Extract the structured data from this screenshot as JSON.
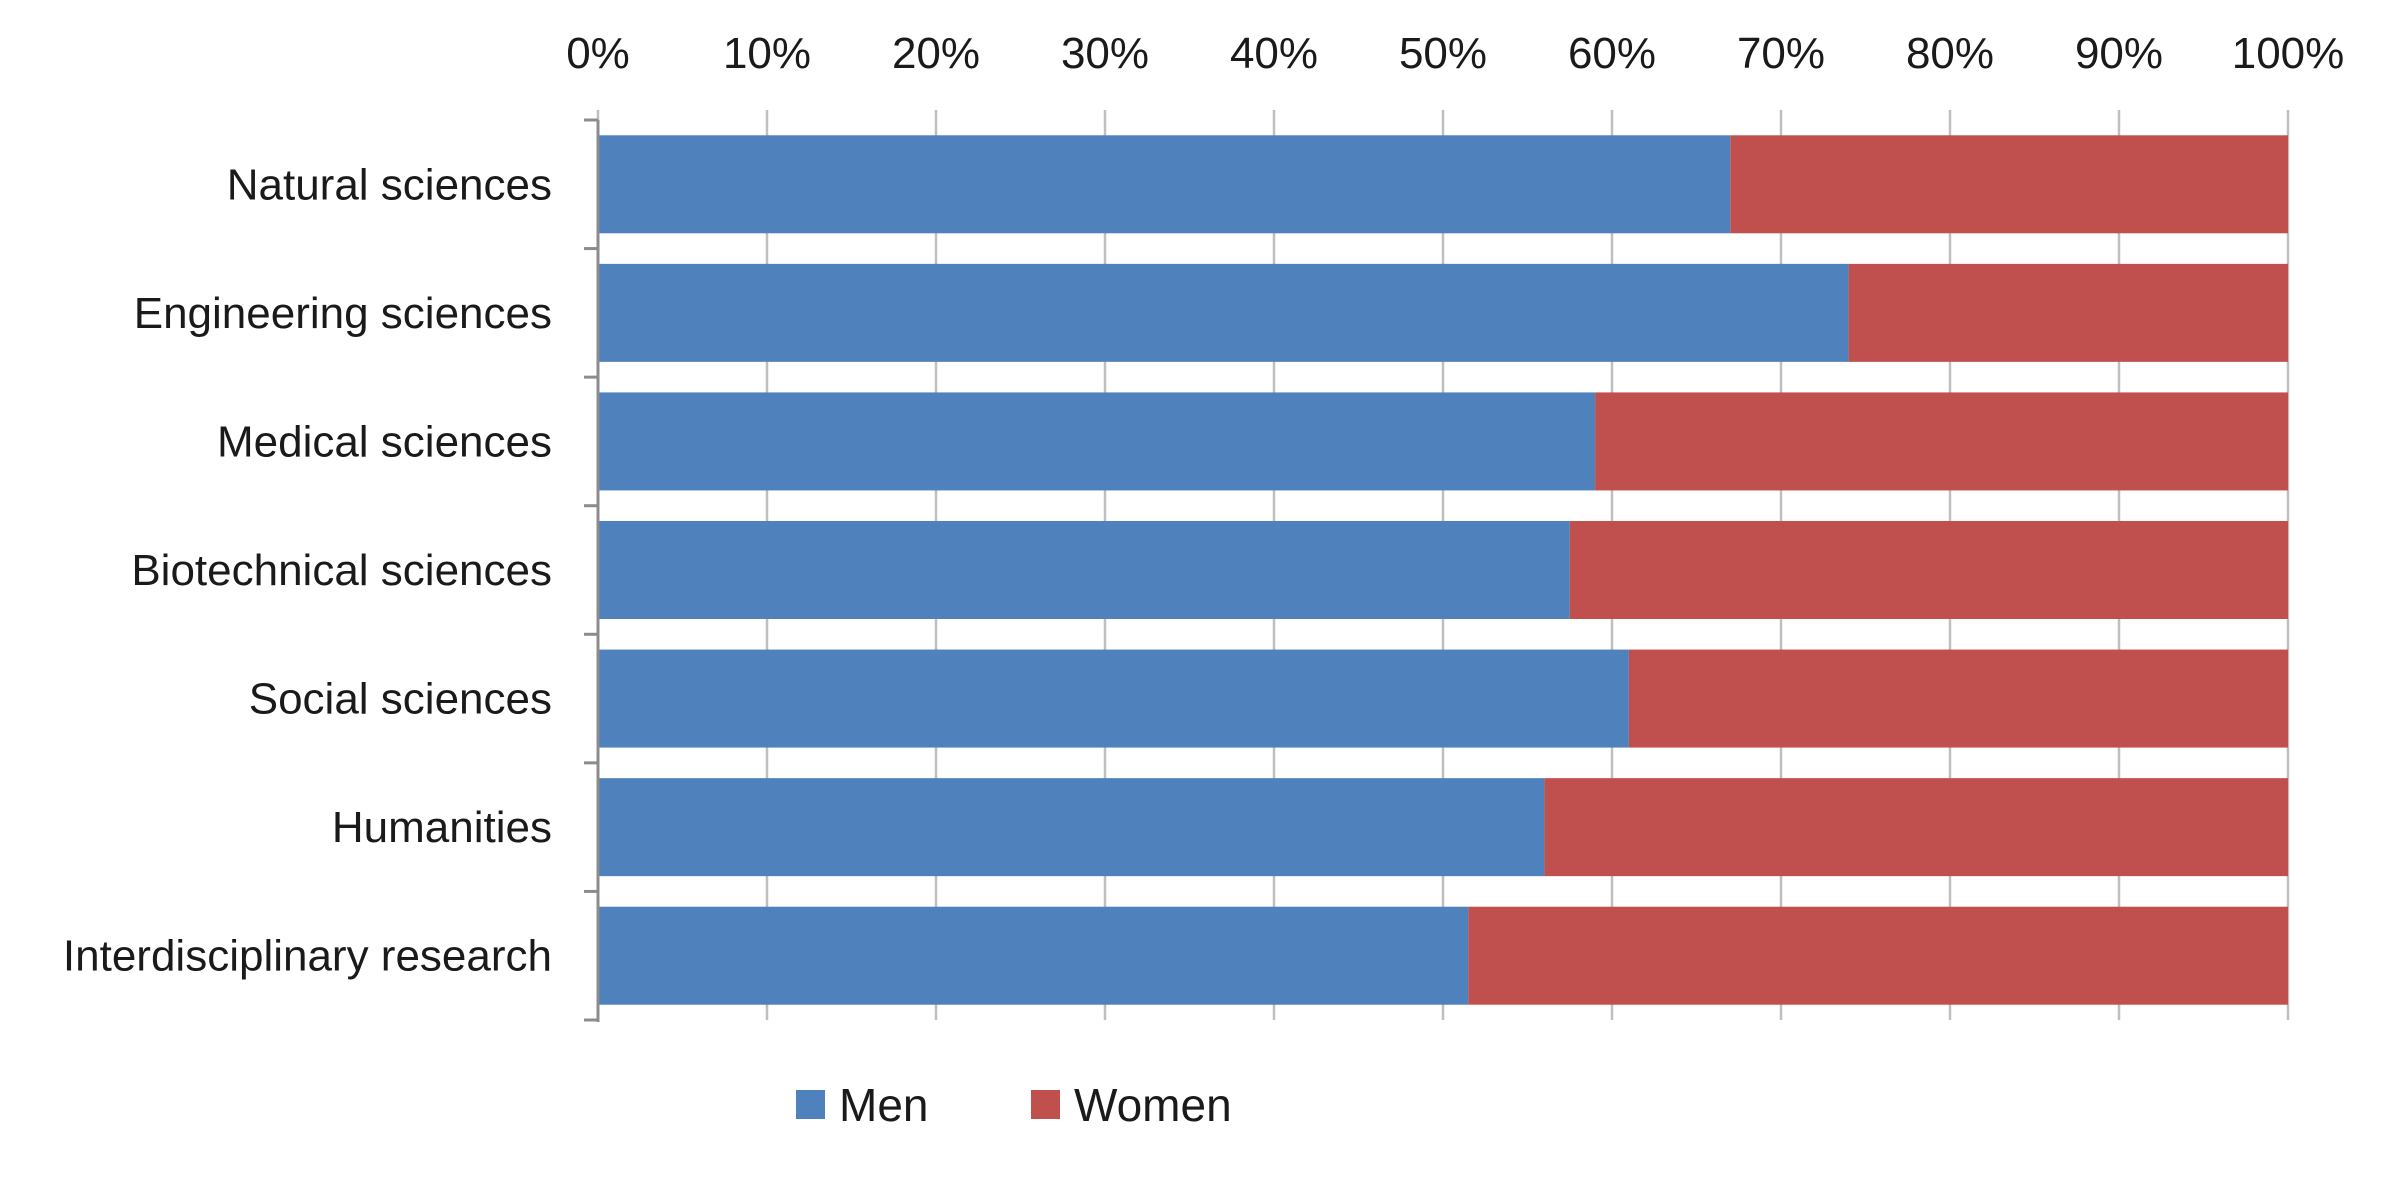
{
  "chart_data": {
    "type": "bar",
    "orientation": "horizontal",
    "stacked": true,
    "categories": [
      "Natural sciences",
      "Engineering sciences",
      "Medical sciences",
      "Biotechnical sciences",
      "Social sciences",
      "Humanities",
      "Interdisciplinary research"
    ],
    "series": [
      {
        "name": "Men",
        "color": "#4f81bd",
        "values": [
          67,
          74,
          59,
          57.5,
          61,
          56,
          51.5
        ]
      },
      {
        "name": "Women",
        "color": "#c0504d",
        "values": [
          33,
          26,
          41,
          42.5,
          39,
          44,
          48.5
        ]
      }
    ],
    "xlim": [
      0,
      100
    ],
    "x_ticks": [
      "0%",
      "10%",
      "20%",
      "30%",
      "40%",
      "50%",
      "60%",
      "70%",
      "80%",
      "90%",
      "100%"
    ],
    "x_axis_position": "top",
    "grid": true,
    "legend_position": "bottom",
    "title": "",
    "xlabel": "",
    "ylabel": ""
  }
}
